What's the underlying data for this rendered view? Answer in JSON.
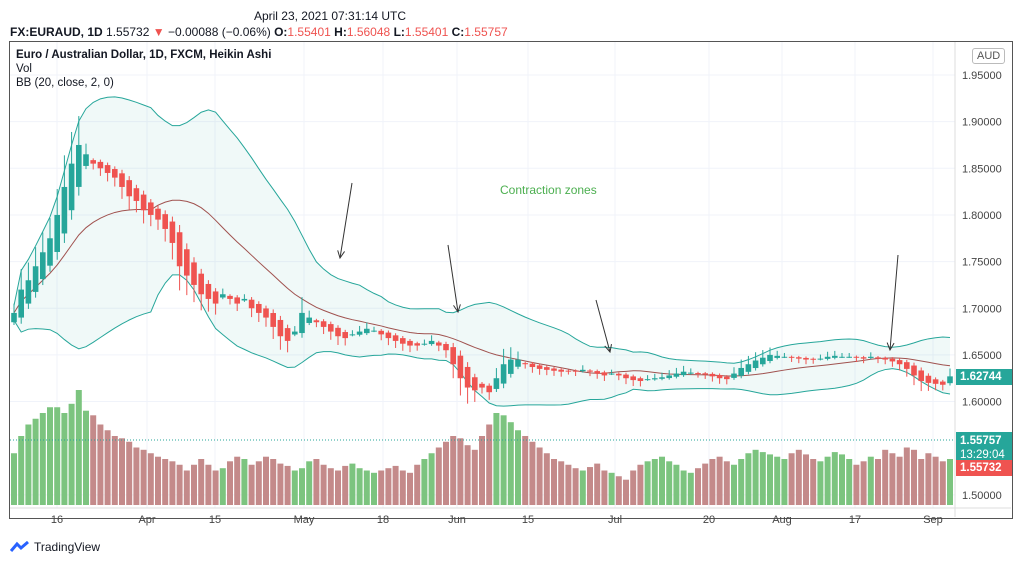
{
  "header": {
    "datetime": "April 23, 2021 07:31:14 UTC",
    "symbol": "FX:EURAUD, 1D",
    "last": "1.55732",
    "change_icon": "triangle-down-icon",
    "change": "−0.00088 (−0.06%)",
    "o_label": "O:",
    "o": "1.55401",
    "h_label": "H:",
    "h": "1.56048",
    "l_label": "L:",
    "l": "1.55401",
    "c_label": "C:",
    "c": "1.55757"
  },
  "legend": {
    "title": "Euro / Australian Dollar, 1D, FXCM, Heikin Ashi",
    "vol": "Vol",
    "bb": "BB (20, close, 2, 0)"
  },
  "currency": "AUD",
  "badges": {
    "current": "1.62744",
    "price": "1.55757",
    "countdown": "13:29:04",
    "prev": "1.55732"
  },
  "brand": "TradingView",
  "colors": {
    "up": "#26a69a",
    "down": "#ef5350",
    "vol_up": "#7cc47f",
    "vol_down": "#c48a8a",
    "band": "#26a69a",
    "basis": "#a0524f",
    "annotation": "#4caf50"
  },
  "chart_data": {
    "type": "candlestick",
    "ylim": [
      1.48,
      1.975
    ],
    "y_ticks": [
      "1.95000",
      "1.90000",
      "1.85000",
      "1.80000",
      "1.75000",
      "1.70000",
      "1.65000",
      "1.60000",
      "1.50000"
    ],
    "x_ticks": [
      "16",
      "Apr",
      "15",
      "May",
      "18",
      "Jun",
      "15",
      "Jul",
      "20",
      "Aug",
      "17",
      "Sep"
    ],
    "grid": true,
    "closes": [
      1.695,
      1.72,
      1.73,
      1.745,
      1.76,
      1.775,
      1.8,
      1.83,
      1.855,
      1.875,
      1.865,
      1.855,
      1.85,
      1.845,
      1.84,
      1.83,
      1.82,
      1.815,
      1.805,
      1.8,
      1.795,
      1.785,
      1.77,
      1.745,
      1.735,
      1.725,
      1.715,
      1.71,
      1.705,
      1.715,
      1.71,
      1.705,
      1.71,
      1.7,
      1.695,
      1.69,
      1.68,
      1.67,
      1.665,
      1.675,
      1.695,
      1.69,
      1.685,
      1.68,
      1.675,
      1.67,
      1.668,
      1.672,
      1.675,
      1.678,
      1.676,
      1.672,
      1.668,
      1.665,
      1.662,
      1.66,
      1.66,
      1.662,
      1.665,
      1.66,
      1.655,
      1.64,
      1.625,
      1.615,
      1.612,
      1.615,
      1.61,
      1.625,
      1.64,
      1.645,
      1.645,
      1.64,
      1.637,
      1.635,
      1.634,
      1.633,
      1.632,
      1.633,
      1.632,
      1.634,
      1.632,
      1.63,
      1.628,
      1.63,
      1.628,
      1.625,
      1.623,
      1.622,
      1.624,
      1.625,
      1.626,
      1.628,
      1.63,
      1.632,
      1.631,
      1.63,
      1.629,
      1.627,
      1.625,
      1.624,
      1.63,
      1.636,
      1.64,
      1.644,
      1.647,
      1.65,
      1.649,
      1.648,
      1.647,
      1.646,
      1.645,
      1.645,
      1.646,
      1.648,
      1.649,
      1.648,
      1.648,
      1.647,
      1.646,
      1.648,
      1.646,
      1.645,
      1.643,
      1.64,
      1.635,
      1.628,
      1.622,
      1.62,
      1.619,
      1.618,
      1.627
    ],
    "volume_relative": [
      45,
      60,
      70,
      75,
      80,
      85,
      85,
      80,
      88,
      100,
      82,
      78,
      70,
      65,
      60,
      58,
      55,
      50,
      48,
      45,
      42,
      40,
      38,
      35,
      30,
      35,
      40,
      35,
      30,
      32,
      38,
      42,
      40,
      35,
      38,
      42,
      40,
      36,
      34,
      30,
      32,
      38,
      40,
      35,
      32,
      30,
      34,
      36,
      32,
      30,
      28,
      30,
      32,
      34,
      30,
      28,
      35,
      40,
      45,
      50,
      55,
      60,
      58,
      52,
      48,
      60,
      70,
      80,
      78,
      72,
      65,
      60,
      55,
      50,
      45,
      40,
      38,
      35,
      32,
      30,
      33,
      36,
      30,
      28,
      25,
      22,
      30,
      35,
      38,
      40,
      42,
      38,
      35,
      30,
      28,
      32,
      36,
      40,
      42,
      38,
      35,
      40,
      45,
      48,
      46,
      44,
      42,
      40,
      45,
      48,
      44,
      40,
      38,
      42,
      46,
      44,
      40,
      35,
      38,
      42,
      40,
      48,
      45,
      42,
      50,
      48,
      40,
      45,
      42,
      38,
      40
    ],
    "bollinger": {
      "period": 20,
      "mult": 2
    },
    "annotations": [
      {
        "text": "Contraction zones"
      }
    ]
  }
}
